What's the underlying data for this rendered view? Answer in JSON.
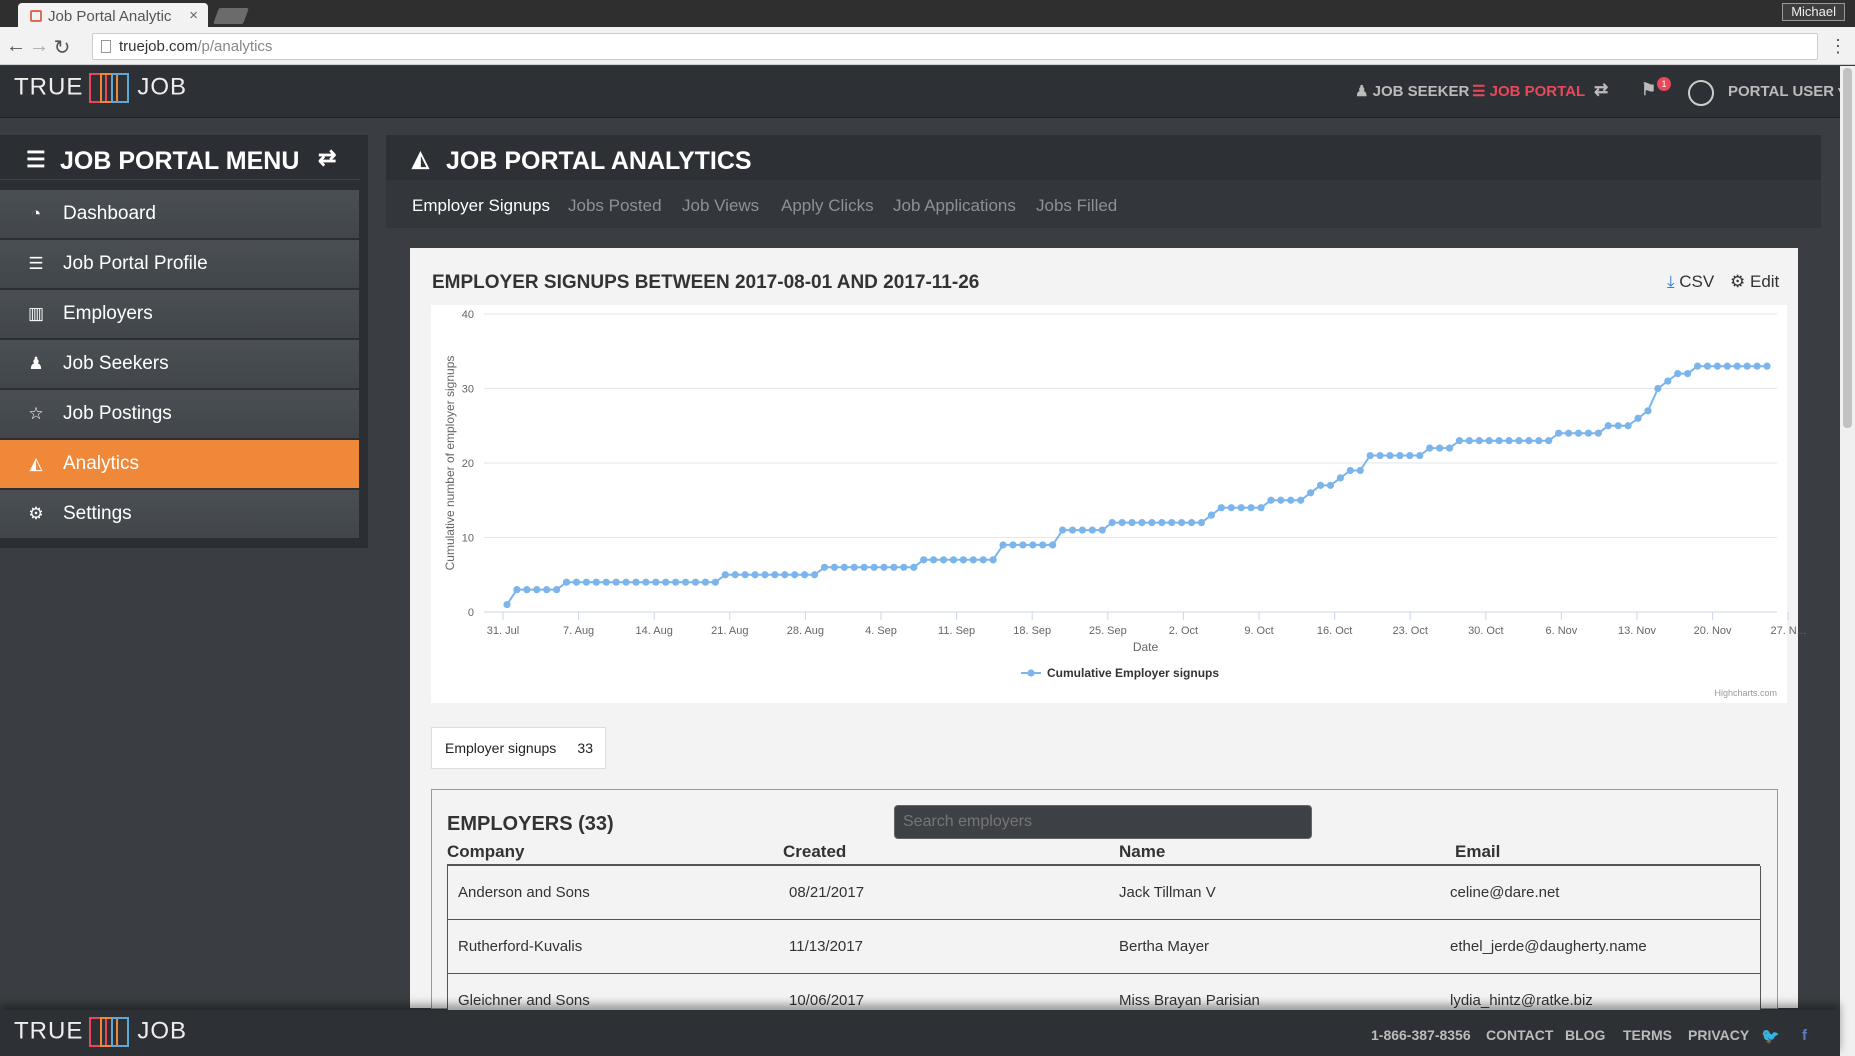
{
  "browser": {
    "tab_title": "Job Portal Analytic",
    "tab_close": "×",
    "profile": "Michael",
    "url_host": "truejob.com",
    "url_path": "/p/analytics"
  },
  "header": {
    "logo_left": "TRUE",
    "logo_right": "JOB",
    "nav": {
      "job_seeker": "JOB SEEKER",
      "job_portal": "JOB PORTAL",
      "portal_user": "PORTAL USER"
    },
    "notification_count": "1"
  },
  "sidebar": {
    "title": "JOB PORTAL MENU",
    "items": [
      {
        "label": "Dashboard",
        "icon": "dashboard-icon"
      },
      {
        "label": "Job Portal Profile",
        "icon": "sitemap-icon"
      },
      {
        "label": "Employers",
        "icon": "building-icon"
      },
      {
        "label": "Job Seekers",
        "icon": "user-icon"
      },
      {
        "label": "Job Postings",
        "icon": "star-icon"
      },
      {
        "label": "Analytics",
        "icon": "area-chart-icon",
        "active": true
      },
      {
        "label": "Settings",
        "icon": "gears-icon"
      }
    ]
  },
  "main": {
    "title": "JOB PORTAL ANALYTICS",
    "tabs": [
      "Employer Signups",
      "Jobs Posted",
      "Job Views",
      "Apply Clicks",
      "Job Applications",
      "Jobs Filled"
    ],
    "active_tab": "Employer Signups",
    "chart_heading": "EMPLOYER SIGNUPS BETWEEN 2017-08-01 AND 2017-11-26",
    "csv_label": "CSV",
    "edit_label": "Edit",
    "stat_label": "Employer signups",
    "stat_value": "33",
    "employers_title": "EMPLOYERS (33)",
    "search_placeholder": "Search employers",
    "columns": [
      "Company",
      "Created",
      "Name",
      "Email"
    ],
    "rows": [
      [
        "Anderson and Sons",
        "08/21/2017",
        "Jack Tillman V",
        "celine@dare.net"
      ],
      [
        "Rutherford-Kuvalis",
        "11/13/2017",
        "Bertha Mayer",
        "ethel_jerde@daugherty.name"
      ],
      [
        "Gleichner and Sons",
        "10/06/2017",
        "Miss Brayan Parisian",
        "lydia_hintz@ratke.biz"
      ]
    ]
  },
  "footer": {
    "phone": "1-866-387-8356",
    "links": [
      "CONTACT",
      "BLOG",
      "TERMS",
      "PRIVACY"
    ]
  },
  "colors": {
    "accent": "#f0883a",
    "portal_red": "#e8485a",
    "series": "#7cb5ec"
  },
  "chart_data": {
    "type": "line",
    "xlabel": "Date",
    "ylabel": "Cumulative number of employer signups",
    "ylim": [
      0,
      40
    ],
    "yticks": [
      "0",
      "10",
      "20",
      "30",
      "40"
    ],
    "xticks": [
      "31. Jul",
      "7. Aug",
      "14. Aug",
      "21. Aug",
      "28. Aug",
      "4. Sep",
      "11. Sep",
      "18. Sep",
      "25. Sep",
      "2. Oct",
      "9. Oct",
      "16. Oct",
      "23. Oct",
      "30. Oct",
      "6. Nov",
      "13. Nov",
      "20. Nov",
      "27. N..."
    ],
    "credit": "Highcharts.com",
    "series": [
      {
        "name": "Cumulative Employer signups",
        "values": [
          1,
          3,
          3,
          3,
          3,
          3,
          4,
          4,
          4,
          4,
          4,
          4,
          4,
          4,
          4,
          4,
          4,
          4,
          4,
          4,
          4,
          4,
          5,
          5,
          5,
          5,
          5,
          5,
          5,
          5,
          5,
          5,
          6,
          6,
          6,
          6,
          6,
          6,
          6,
          6,
          6,
          6,
          7,
          7,
          7,
          7,
          7,
          7,
          7,
          7,
          9,
          9,
          9,
          9,
          9,
          9,
          11,
          11,
          11,
          11,
          11,
          12,
          12,
          12,
          12,
          12,
          12,
          12,
          12,
          12,
          12,
          13,
          14,
          14,
          14,
          14,
          14,
          15,
          15,
          15,
          15,
          16,
          17,
          17,
          18,
          19,
          19,
          21,
          21,
          21,
          21,
          21,
          21,
          22,
          22,
          22,
          23,
          23,
          23,
          23,
          23,
          23,
          23,
          23,
          23,
          23,
          24,
          24,
          24,
          24,
          24,
          25,
          25,
          25,
          26,
          27,
          30,
          31,
          32,
          32,
          33,
          33,
          33,
          33,
          33,
          33,
          33,
          33
        ]
      }
    ]
  }
}
